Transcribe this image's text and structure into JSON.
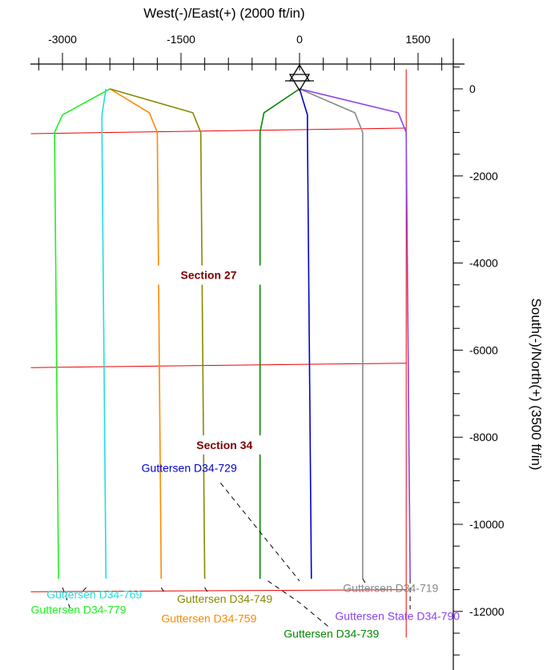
{
  "chart_data": {
    "type": "line",
    "title": "",
    "xlabel": "West(-)/East(+) (2000 ft/in)",
    "ylabel": "South(-)/North(+) (3500 ft/in)",
    "xlim": [
      -3700,
      2000
    ],
    "ylim": [
      -12600,
      600
    ],
    "x_ticks": [
      "-3000",
      "-1500",
      "0",
      "1500"
    ],
    "x_tick_values": [
      -3000,
      -1500,
      0,
      1500
    ],
    "y_ticks": [
      "0",
      "-2000",
      "-4000",
      "-6000",
      "-8000",
      "-10000",
      "-12000"
    ],
    "y_tick_values": [
      0,
      -2000,
      -4000,
      -6000,
      -8000,
      -10000,
      -12000
    ],
    "section_lines": [
      {
        "points": [
          [
            -3400,
            -1030
          ],
          [
            1350,
            -900
          ]
        ]
      },
      {
        "points": [
          [
            -3400,
            -6400
          ],
          [
            1350,
            -6300
          ]
        ]
      },
      {
        "points": [
          [
            -3400,
            -11550
          ],
          [
            1350,
            -11500
          ]
        ]
      },
      {
        "points": [
          [
            1350,
            450
          ],
          [
            1350,
            -12600
          ]
        ]
      }
    ],
    "section_labels": [
      {
        "text": "Section 27",
        "x": -1150,
        "y": -4350
      },
      {
        "text": "Section 34",
        "x": -950,
        "y": -8250
      }
    ],
    "series": [
      {
        "name": "Guttersen D34-779",
        "color": "#22ee22",
        "points": [
          [
            -2400,
            0
          ],
          [
            -3000,
            -600
          ],
          [
            -3100,
            -1000
          ],
          [
            -3050,
            -11250
          ]
        ],
        "label_x": -3400,
        "label_y": -12050,
        "label_anchor": "start",
        "leader": [
          [
            -3000,
            -11450
          ],
          [
            -2900,
            -11950
          ]
        ]
      },
      {
        "name": "Guttersen D34-769",
        "color": "#22dddd",
        "points": [
          [
            -2450,
            0
          ],
          [
            -2500,
            -600
          ],
          [
            -2500,
            -1000
          ],
          [
            -2450,
            -11250
          ]
        ],
        "label_x": -3200,
        "label_y": -11700,
        "label_anchor": "start",
        "leader": [
          [
            -2700,
            -11450
          ],
          [
            -2750,
            -11550
          ]
        ]
      },
      {
        "name": "Guttersen D34-759",
        "color": "#ff8800",
        "points": [
          [
            -2400,
            0
          ],
          [
            -1900,
            -550
          ],
          [
            -1800,
            -1000
          ],
          [
            -1750,
            -11250
          ]
        ],
        "label_x": -1750,
        "label_y": -12250,
        "label_anchor": "start",
        "leader": [
          [
            -1750,
            -11450
          ],
          [
            -1700,
            -11600
          ]
        ]
      },
      {
        "name": "Guttersen D34-749",
        "color": "#888800",
        "points": [
          [
            -2400,
            0
          ],
          [
            -1350,
            -550
          ],
          [
            -1250,
            -1000
          ],
          [
            -1200,
            -11250
          ]
        ],
        "label_x": -1550,
        "label_y": -11800,
        "label_anchor": "start",
        "leader": [
          [
            -1200,
            -11450
          ],
          [
            -1150,
            -11600
          ]
        ]
      },
      {
        "name": "Guttersen D34-739",
        "color": "#008800",
        "points": [
          [
            0,
            0
          ],
          [
            -450,
            -550
          ],
          [
            -500,
            -1000
          ],
          [
            -500,
            -11250
          ]
        ],
        "label_x": -200,
        "label_y": -12600,
        "label_anchor": "start",
        "leader": [
          [
            -400,
            -11300
          ],
          [
            0,
            -11800
          ],
          [
            400,
            -12400
          ]
        ]
      },
      {
        "name": "Guttersen D34-729",
        "color": "#0000cc",
        "points": [
          [
            0,
            0
          ],
          [
            100,
            -600
          ],
          [
            100,
            -1000
          ],
          [
            150,
            -11250
          ]
        ],
        "label_x": -2000,
        "label_y": -8800,
        "label_anchor": "start",
        "leader": [
          [
            -1000,
            -9050
          ],
          [
            0,
            -11300
          ]
        ]
      },
      {
        "name": "Guttersen D34-719",
        "color": "#888888",
        "points": [
          [
            0,
            0
          ],
          [
            700,
            -550
          ],
          [
            800,
            -1000
          ],
          [
            800,
            -11250
          ]
        ],
        "label_x": 550,
        "label_y": -11550,
        "label_anchor": "start",
        "leader": [
          [
            800,
            -11250
          ],
          [
            850,
            -11400
          ]
        ]
      },
      {
        "name": "Guttersen State D34-790",
        "color": "#8844ee",
        "points": [
          [
            0,
            0
          ],
          [
            1250,
            -550
          ],
          [
            1350,
            -1000
          ],
          [
            1400,
            -11250
          ]
        ],
        "label_x": 450,
        "label_y": -12200,
        "label_anchor": "start",
        "leader": [
          [
            1400,
            -11250
          ],
          [
            1400,
            -11950
          ]
        ]
      }
    ]
  }
}
